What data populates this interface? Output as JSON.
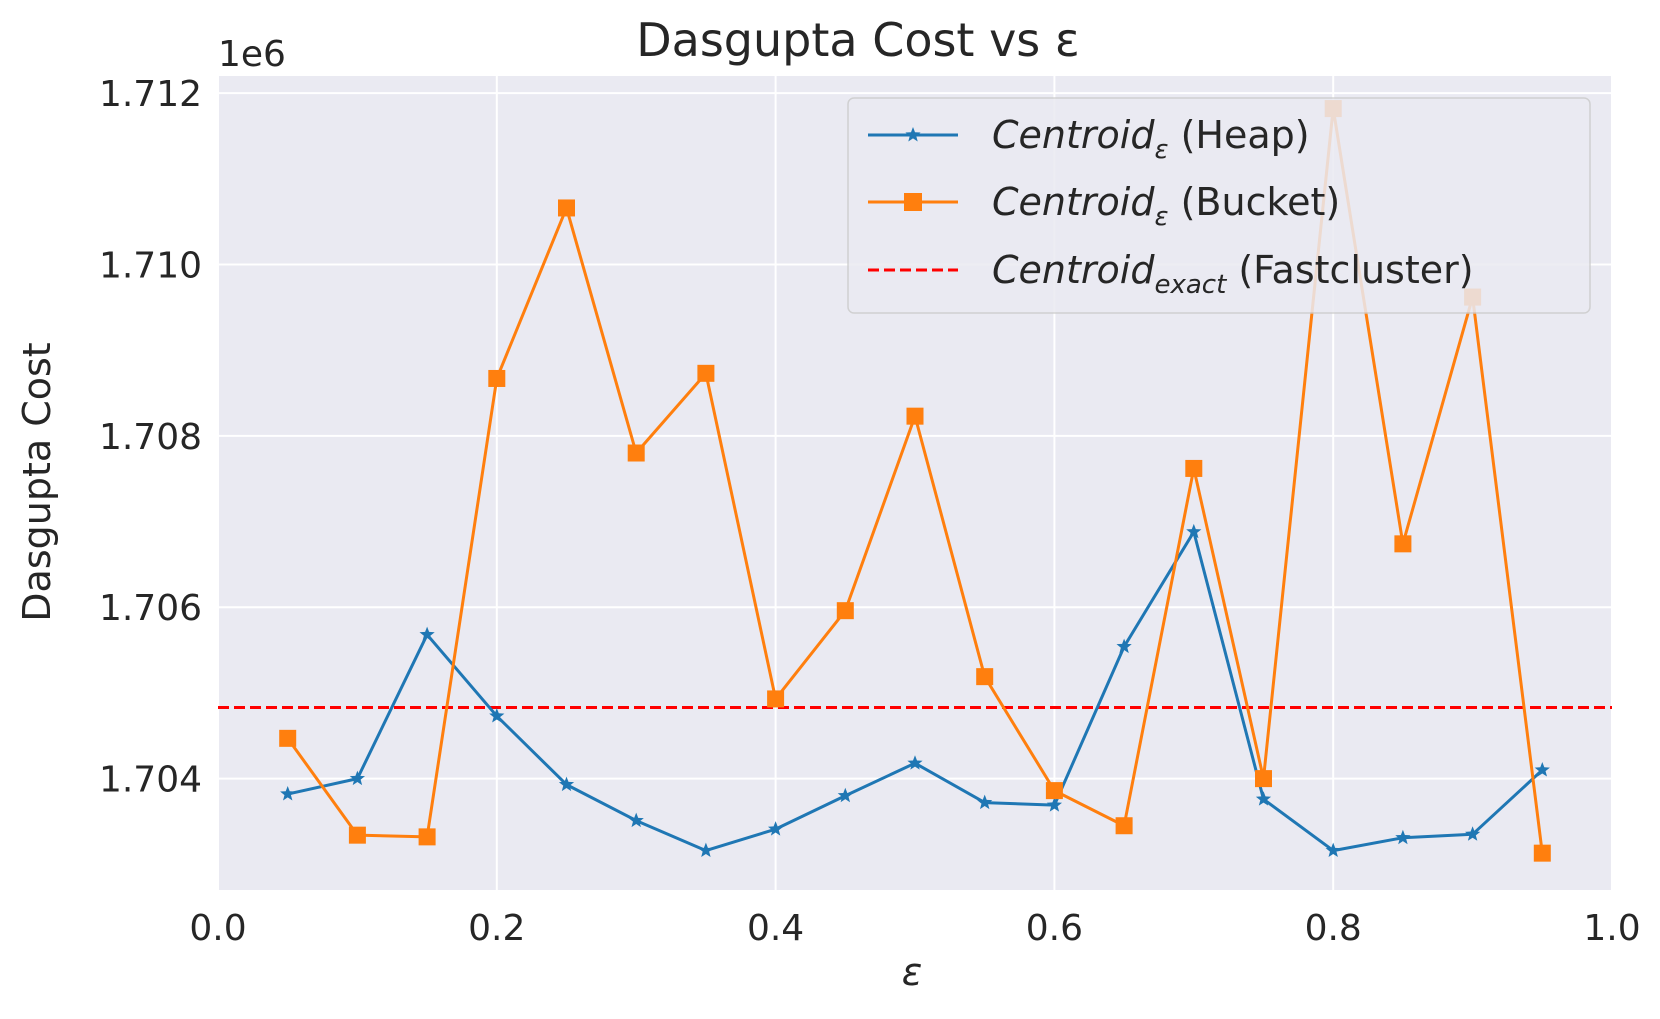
{
  "chart_data": {
    "type": "line",
    "title": "Dasgupta Cost vs ε",
    "xlabel": "ε",
    "ylabel": "Dasgupta Cost",
    "y_offset_label": "1e6",
    "xlim": [
      0.0,
      1.0
    ],
    "ylim": [
      1.7027,
      1.7122
    ],
    "xticks": [
      0.0,
      0.2,
      0.4,
      0.6,
      0.8,
      1.0
    ],
    "xtick_labels": [
      "0.0",
      "0.2",
      "0.4",
      "0.6",
      "0.8",
      "1.0"
    ],
    "yticks": [
      1.704,
      1.706,
      1.708,
      1.71,
      1.712
    ],
    "ytick_labels": [
      "1.704",
      "1.706",
      "1.708",
      "1.710",
      "1.712"
    ],
    "grid": true,
    "legend_position": "top-right",
    "x": [
      0.05,
      0.1,
      0.15,
      0.2,
      0.25,
      0.3,
      0.35,
      0.4,
      0.45,
      0.5,
      0.55,
      0.6,
      0.65,
      0.7,
      0.75,
      0.8,
      0.85,
      0.9,
      0.95
    ],
    "series": [
      {
        "name": "Centroid_ε (Heap)",
        "legend_main": "Centroid",
        "legend_sub": "ε",
        "legend_suffix": " (Heap)",
        "color": "#1f77b4",
        "marker": "star",
        "values": [
          1.70382,
          1.704,
          1.70568,
          1.70473,
          1.70393,
          1.70351,
          1.70316,
          1.70341,
          1.7038,
          1.70418,
          1.70372,
          1.70369,
          1.70554,
          1.70688,
          1.70376,
          1.70316,
          1.70331,
          1.70335,
          1.7041
        ]
      },
      {
        "name": "Centroid_ε (Bucket)",
        "legend_main": "Centroid",
        "legend_sub": "ε",
        "legend_suffix": " (Bucket)",
        "color": "#ff7f0e",
        "marker": "square",
        "values": [
          1.70447,
          1.70334,
          1.70332,
          1.70867,
          1.71066,
          1.7078,
          1.70873,
          1.70493,
          1.70596,
          1.70823,
          1.70519,
          1.70386,
          1.70345,
          1.70762,
          1.704,
          1.71182,
          1.70674,
          1.70962,
          1.70313
        ]
      }
    ],
    "reference_line": {
      "name": "Centroid_exact (Fastcluster)",
      "legend_main": "Centroid",
      "legend_sub": "exact",
      "legend_suffix": " (Fastcluster)",
      "color": "#ff0000",
      "style": "dashed",
      "value": 1.70483
    },
    "plot_background": "#eaeaf2",
    "grid_color": "#ffffff"
  }
}
